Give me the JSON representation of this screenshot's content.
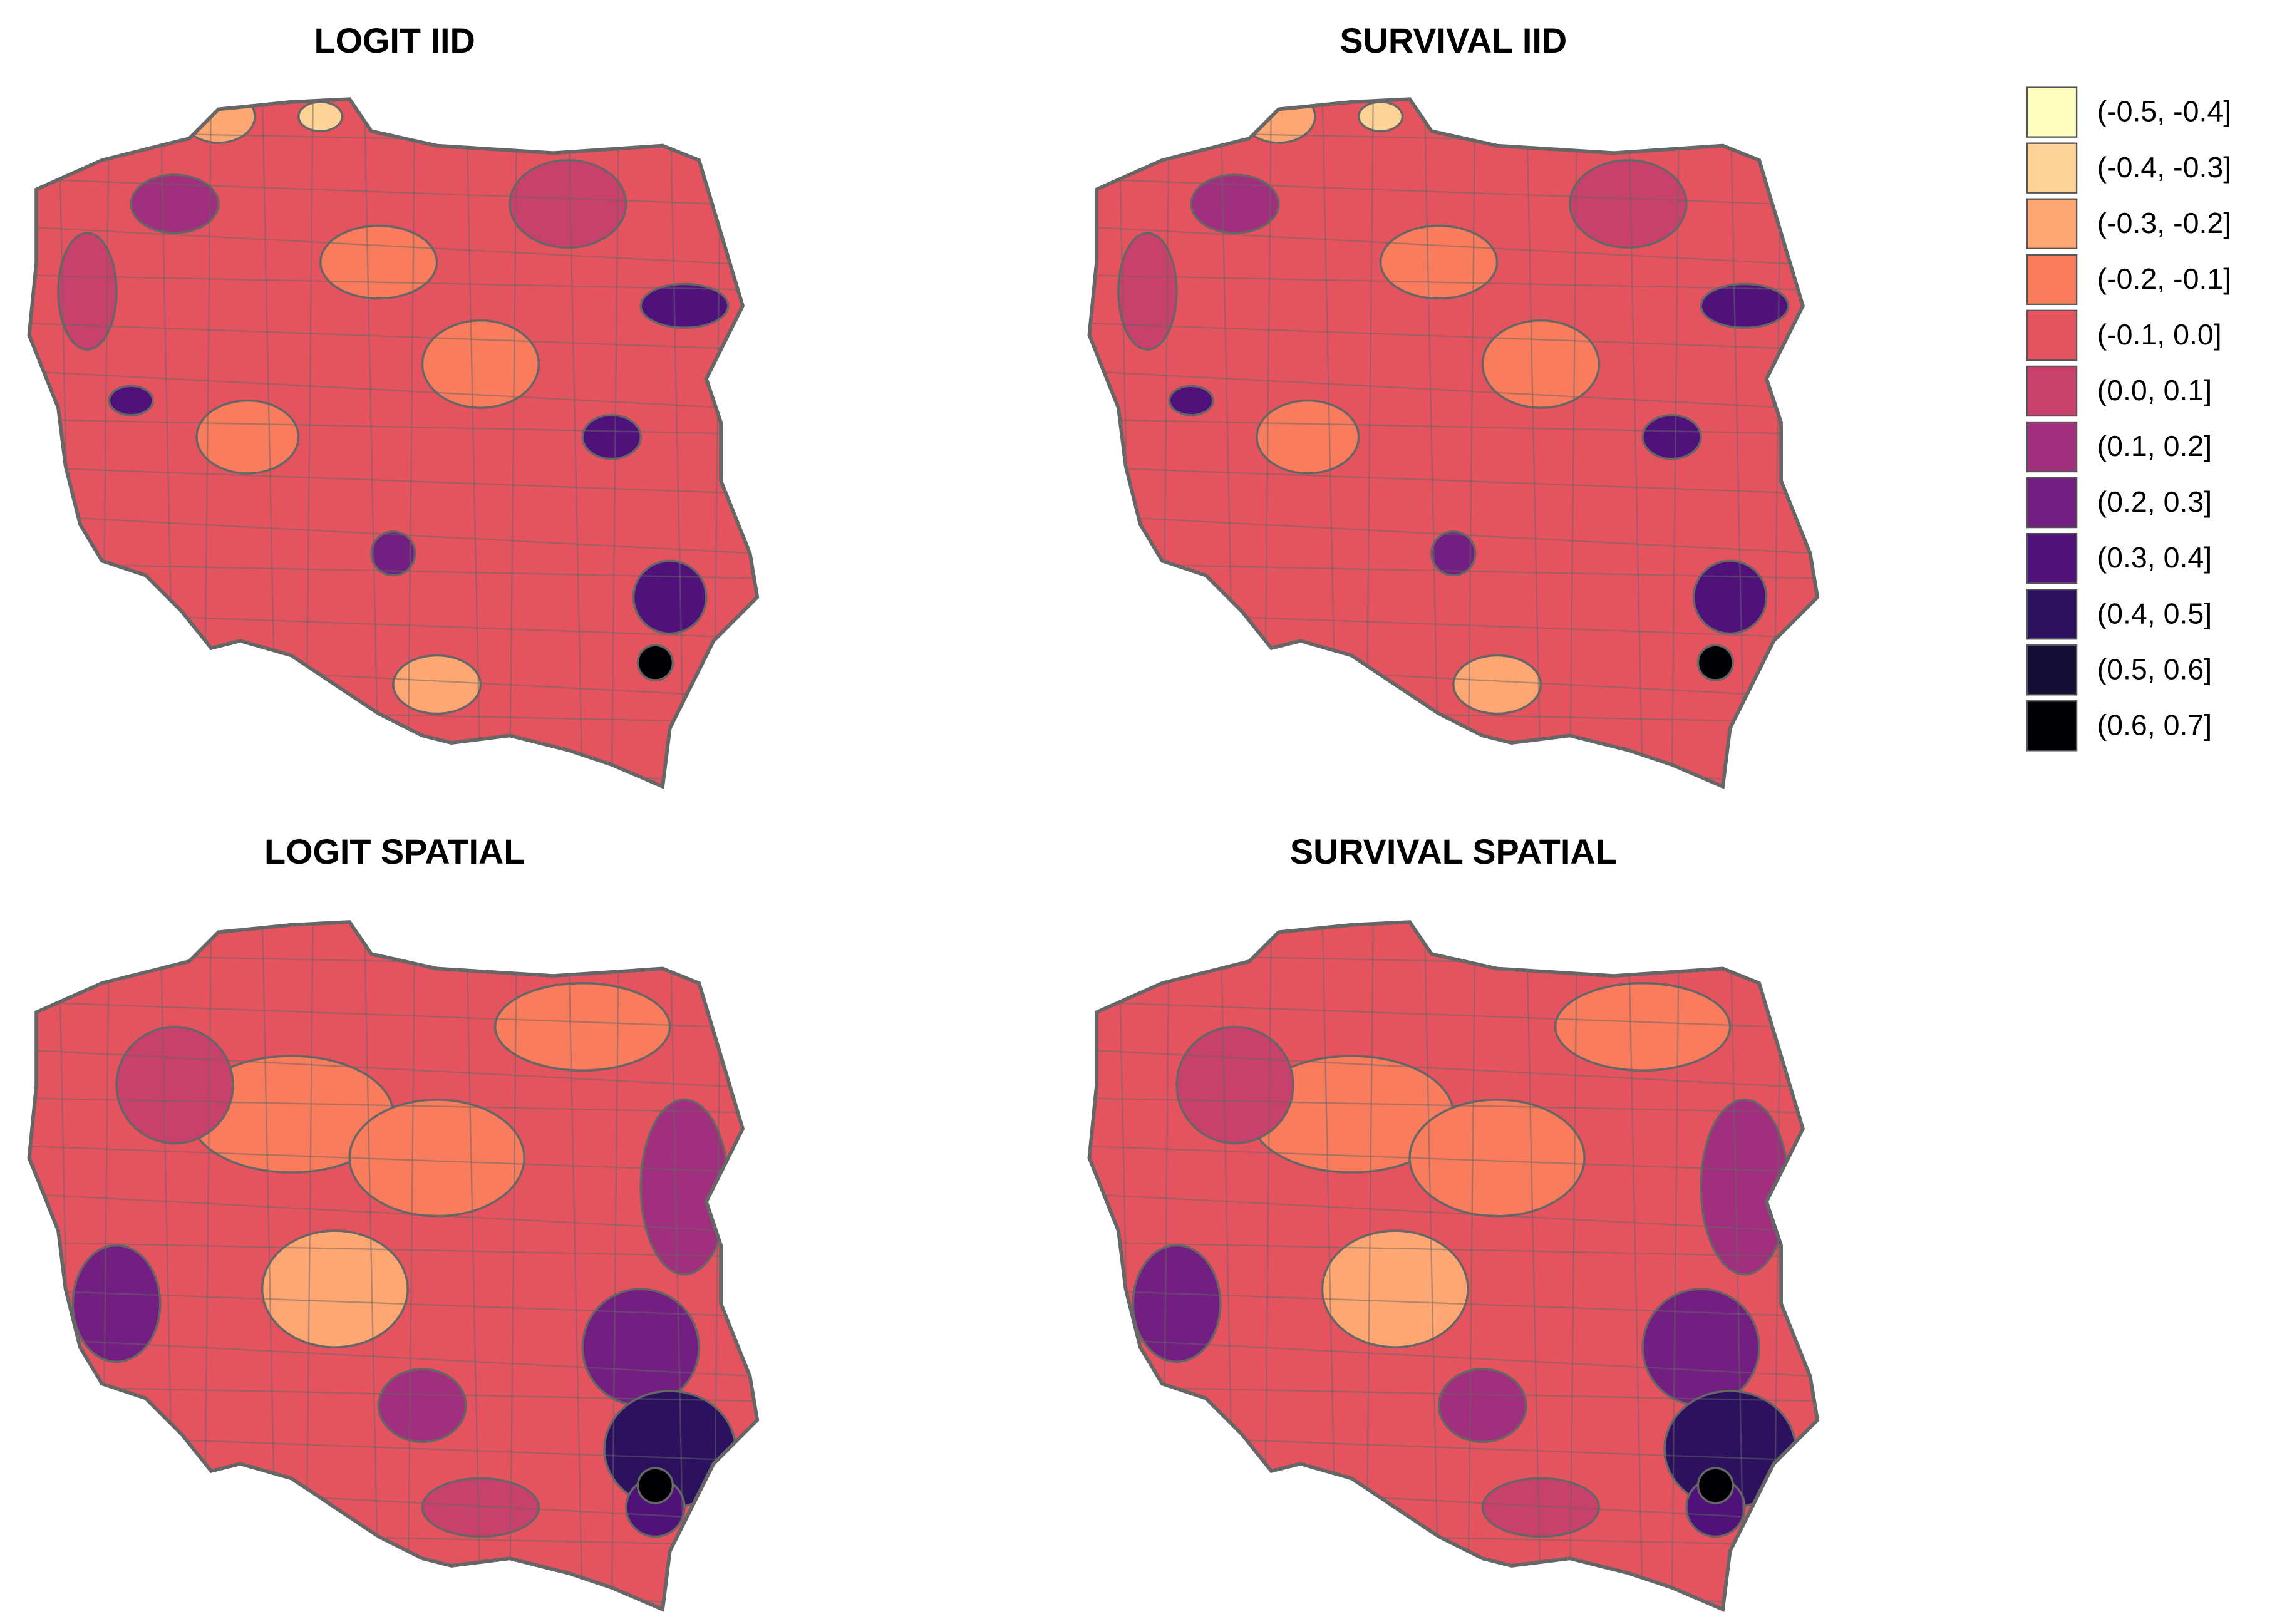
{
  "panels": [
    {
      "title": "LOGIT IID"
    },
    {
      "title": "SURVIVAL IID"
    },
    {
      "title": "LOGIT SPATIAL"
    },
    {
      "title": "SURVIVAL SPATIAL"
    }
  ],
  "legend": {
    "items": [
      {
        "label": "(-0.5, -0.4]",
        "color": "#fcfdbf"
      },
      {
        "label": "(-0.4, -0.3]",
        "color": "#fed395"
      },
      {
        "label": "(-0.3, -0.2]",
        "color": "#fea772"
      },
      {
        "label": "(-0.2, -0.1]",
        "color": "#f97c5d"
      },
      {
        "label": "(-0.1, 0.0]",
        "color": "#e5535f"
      },
      {
        "label": "(0.0, 0.1]",
        "color": "#c8406c"
      },
      {
        "label": "(0.1, 0.2]",
        "color": "#a0307e"
      },
      {
        "label": "(0.2, 0.3]",
        "color": "#731f81"
      },
      {
        "label": "(0.3, 0.4]",
        "color": "#4f127b"
      },
      {
        "label": "(0.4, 0.5]",
        "color": "#2c115f"
      },
      {
        "label": "(0.5, 0.6]",
        "color": "#140e36"
      },
      {
        "label": "(0.6, 0.7]",
        "color": "#000004"
      }
    ]
  }
}
